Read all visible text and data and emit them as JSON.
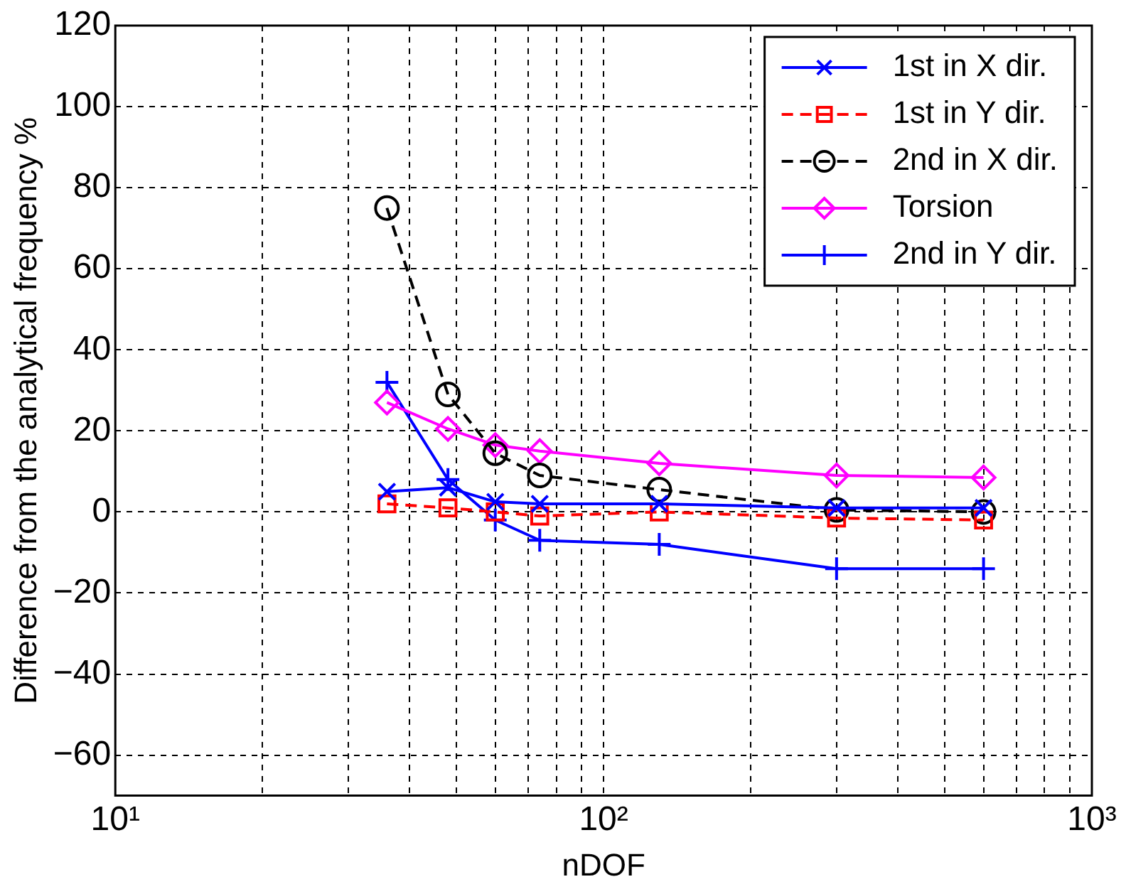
{
  "chart_data": {
    "type": "line",
    "xlabel": "nDOF",
    "ylabel": "Difference from the analytical frequency %",
    "log": "x",
    "xlim": [
      10,
      1000
    ],
    "xticks": [
      {
        "value": 10,
        "label": "10¹"
      },
      {
        "value": 20,
        "label": null
      },
      {
        "value": 30,
        "label": null
      },
      {
        "value": 40,
        "label": null
      },
      {
        "value": 50,
        "label": null
      },
      {
        "value": 60,
        "label": null
      },
      {
        "value": 70,
        "label": null
      },
      {
        "value": 80,
        "label": null
      },
      {
        "value": 90,
        "label": null
      },
      {
        "value": 100,
        "label": "10²"
      },
      {
        "value": 200,
        "label": null
      },
      {
        "value": 300,
        "label": null
      },
      {
        "value": 400,
        "label": null
      },
      {
        "value": 500,
        "label": null
      },
      {
        "value": 600,
        "label": null
      },
      {
        "value": 700,
        "label": null
      },
      {
        "value": 800,
        "label": null
      },
      {
        "value": 900,
        "label": null
      },
      {
        "value": 1000,
        "label": "10³"
      }
    ],
    "ylim": [
      -70,
      120
    ],
    "yticks": [
      -60,
      -40,
      -20,
      0,
      20,
      40,
      60,
      80,
      100,
      120
    ],
    "grid": true,
    "legend": "top right",
    "x": [
      36,
      48,
      60,
      74,
      130,
      300,
      600
    ],
    "series": [
      {
        "name": "1st in X dir.",
        "color": "#0000ff",
        "marker": "x",
        "line_style": "solid",
        "values": [
          5,
          6,
          2.5,
          2,
          2,
          1,
          1
        ]
      },
      {
        "name": "1st in Y dir.",
        "color": "#ff0000",
        "marker": "square",
        "line_style": "dashed",
        "values": [
          2,
          1,
          0,
          -1,
          0,
          -1.5,
          -2
        ]
      },
      {
        "name": "2nd in X dir.",
        "color": "#000000",
        "marker": "circle",
        "line_style": "dashed",
        "values": [
          75,
          29,
          14.5,
          9,
          5.5,
          0.5,
          0
        ]
      },
      {
        "name": "Torsion",
        "color": "#ff00ff",
        "marker": "diamond",
        "line_style": "solid",
        "values": [
          27,
          20.5,
          16.5,
          15,
          12,
          9,
          8.5
        ]
      },
      {
        "name": "2nd in Y dir.",
        "color": "#0000ff",
        "marker": "cross",
        "line_style": "solid",
        "values": [
          32,
          8,
          -2,
          -7,
          -8,
          -14,
          -14
        ]
      }
    ]
  }
}
